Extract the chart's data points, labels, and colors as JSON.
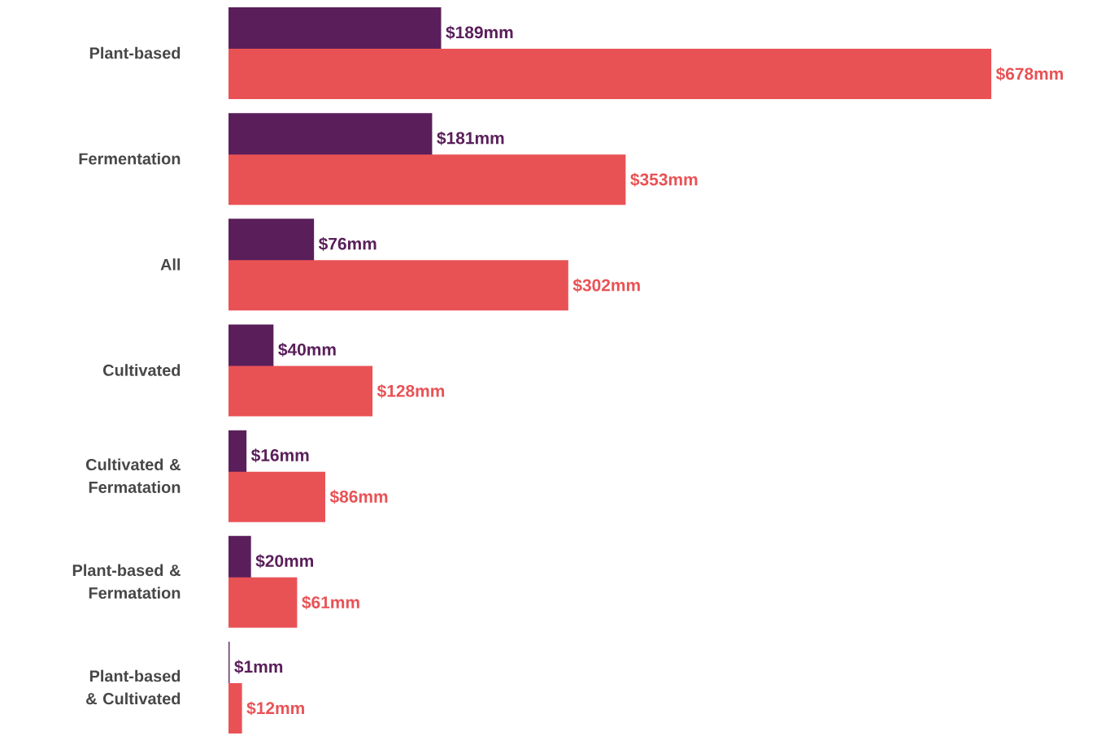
{
  "chart_data": {
    "type": "bar",
    "orientation": "horizontal",
    "categories": [
      "Plant-based",
      "Fermentation",
      "All",
      "Cultivated",
      "Cultivated & Fermatation",
      "Plant-based & Fermatation",
      "Plant-based & Cultivated"
    ],
    "series": [
      {
        "color": "#5a1f5a",
        "values": [
          189,
          181,
          76,
          40,
          16,
          20,
          1
        ],
        "value_labels": [
          "$189mm",
          "$181mm",
          "$76mm",
          "$40mm",
          "$16mm",
          "$20mm",
          "$1mm"
        ]
      },
      {
        "color": "#e95255",
        "values": [
          678,
          353,
          302,
          128,
          86,
          61,
          12
        ],
        "value_labels": [
          "$678mm",
          "$353mm",
          "$302mm",
          "$128mm",
          "$86mm",
          "$61mm",
          "$12mm"
        ]
      }
    ],
    "tick_labels": "y"
  }
}
